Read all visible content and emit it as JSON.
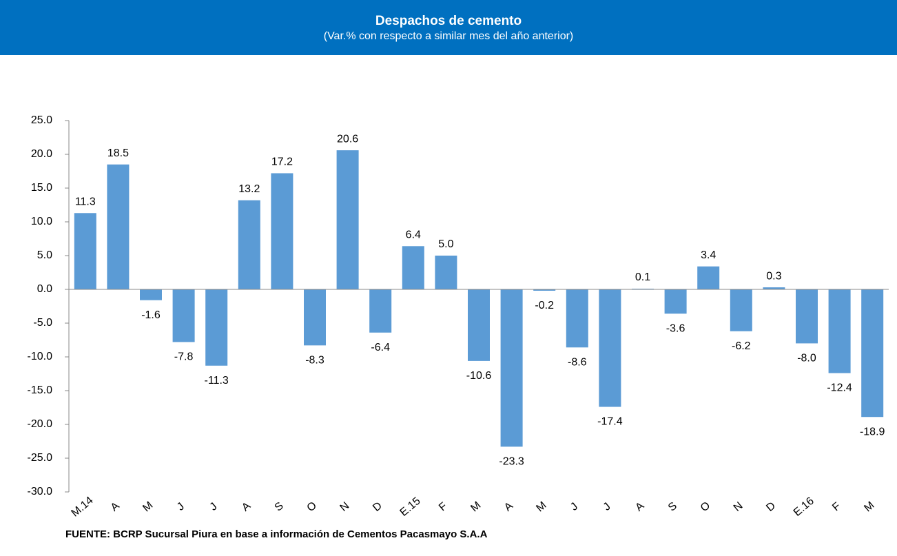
{
  "chart_data": {
    "type": "bar",
    "title": "Despachos de cemento",
    "subtitle": "(Var.% con respecto a similar mes del año anterior)",
    "source": "FUENTE:  BCRP Sucursal Piura en base a información de Cementos Pacasmayo S.A.A",
    "categories": [
      "M.14",
      "A",
      "M",
      "J",
      "J",
      "A",
      "S",
      "O",
      "N",
      "D",
      "E.15",
      "F",
      "M",
      "A",
      "M",
      "J",
      "J",
      "A",
      "S",
      "O",
      "N",
      "D",
      "E.16",
      "F",
      "M"
    ],
    "values": [
      11.3,
      18.5,
      -1.6,
      -7.8,
      -11.3,
      13.2,
      17.2,
      -8.3,
      20.6,
      -6.4,
      6.4,
      5.0,
      -10.6,
      -23.3,
      -0.2,
      -8.6,
      -17.4,
      0.1,
      -3.6,
      3.4,
      -6.2,
      0.3,
      -8.0,
      -12.4,
      -18.9
    ],
    "value_labels": [
      "11.3",
      "18.5",
      "-1.6",
      "-7.8",
      "-11.3",
      "13.2",
      "17.2",
      "-8.3",
      "20.6",
      "-6.4",
      "6.4",
      "5.0",
      "-10.6",
      "-23.3",
      "-0.2",
      "-8.6",
      "-17.4",
      "0.1",
      "-3.6",
      "3.4",
      "-6.2",
      "0.3",
      "-8.0",
      "-12.4",
      "-18.9"
    ],
    "color": "#5b9bd5",
    "ylim": [
      -30,
      25
    ],
    "yticks": [
      {
        "value": -30,
        "label": "-30.0"
      },
      {
        "value": -25,
        "label": "-25.0"
      },
      {
        "value": -20,
        "label": "-20.0"
      },
      {
        "value": -15,
        "label": "-15.0"
      },
      {
        "value": -10,
        "label": "-10.0"
      },
      {
        "value": -5,
        "label": "-5.0"
      },
      {
        "value": 0,
        "label": "0.0"
      },
      {
        "value": 5,
        "label": "5.0"
      },
      {
        "value": 10,
        "label": "10.0"
      },
      {
        "value": 15,
        "label": "15.0"
      },
      {
        "value": 20,
        "label": "20.0"
      },
      {
        "value": 25,
        "label": "25.0"
      }
    ],
    "grid": false
  }
}
